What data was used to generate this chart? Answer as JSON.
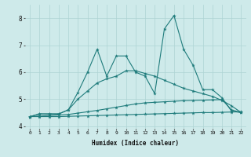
{
  "xlabel": "Humidex (Indice chaleur)",
  "background_color": "#ceeaea",
  "grid_color": "#add4d4",
  "line_color": "#1e7b7b",
  "x_values": [
    0,
    1,
    2,
    3,
    4,
    5,
    6,
    7,
    8,
    9,
    10,
    11,
    12,
    13,
    14,
    15,
    16,
    17,
    18,
    19,
    20,
    21,
    22
  ],
  "series1": [
    4.35,
    4.45,
    4.45,
    4.45,
    4.6,
    5.25,
    6.0,
    6.85,
    5.85,
    6.6,
    6.6,
    6.0,
    5.85,
    5.2,
    7.6,
    8.1,
    6.85,
    6.25,
    5.35,
    5.35,
    5.05,
    4.55,
    4.5
  ],
  "series2": [
    4.35,
    4.45,
    4.45,
    4.45,
    4.6,
    5.0,
    5.3,
    5.6,
    5.75,
    5.85,
    6.05,
    6.05,
    5.95,
    5.85,
    5.7,
    5.55,
    5.4,
    5.3,
    5.2,
    5.1,
    4.95,
    4.75,
    4.5
  ],
  "series3": [
    4.35,
    4.37,
    4.39,
    4.41,
    4.43,
    4.48,
    4.53,
    4.58,
    4.64,
    4.7,
    4.76,
    4.82,
    4.86,
    4.88,
    4.9,
    4.92,
    4.94,
    4.95,
    4.96,
    4.97,
    4.98,
    4.6,
    4.5
  ],
  "series4": [
    4.35,
    4.35,
    4.35,
    4.35,
    4.36,
    4.37,
    4.38,
    4.39,
    4.4,
    4.41,
    4.42,
    4.43,
    4.44,
    4.45,
    4.46,
    4.47,
    4.48,
    4.49,
    4.5,
    4.5,
    4.51,
    4.52,
    4.53
  ],
  "ylim": [
    3.9,
    8.5
  ],
  "yticks": [
    4,
    5,
    6,
    7,
    8
  ],
  "xlim": [
    -0.5,
    22.5
  ]
}
